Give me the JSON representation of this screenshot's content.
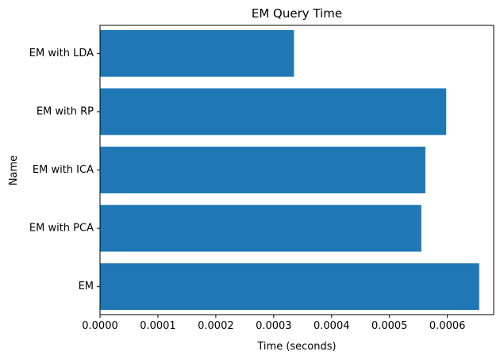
{
  "chart_data": {
    "type": "bar",
    "orientation": "horizontal",
    "title": "EM Query Time",
    "xlabel": "Time (seconds)",
    "ylabel": "Name",
    "categories": [
      "EM",
      "EM with PCA",
      "EM with ICA",
      "EM with RP",
      "EM with LDA"
    ],
    "values": [
      0.000655,
      0.000555,
      0.000562,
      0.000598,
      0.000335
    ],
    "xlim": [
      0,
      0.00068
    ],
    "xticks": [
      "0.0000",
      "0.0001",
      "0.0002",
      "0.0003",
      "0.0004",
      "0.0005",
      "0.0006"
    ],
    "bar_color": "#1f77b4",
    "grid": false
  }
}
